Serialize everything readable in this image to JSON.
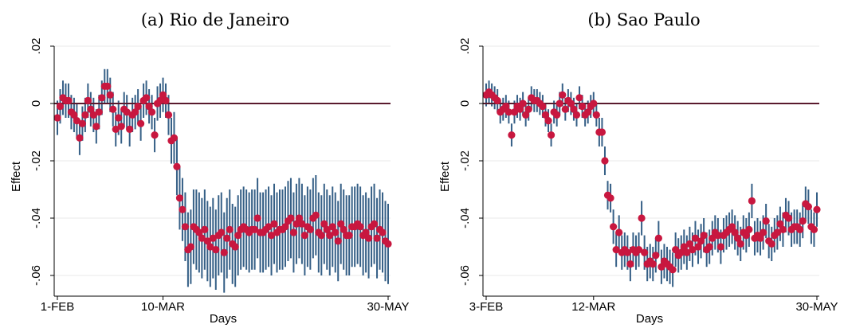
{
  "chart_data": [
    {
      "type": "scatter",
      "title": "(a)  Rio de Janeiro",
      "xlabel": "Days",
      "ylabel": "Effect",
      "x_ticks": [
        "1-FEB",
        "10-MAR",
        "30-MAY"
      ],
      "y_ticks": [
        "-.06",
        "-.04",
        "-.02",
        "0",
        ".02"
      ],
      "ylim": [
        -0.065,
        0.02
      ],
      "n_days": 120,
      "x_tick_days": [
        0,
        38,
        119
      ],
      "reference_line": 0,
      "grid": true,
      "colors": {
        "point": "#c8173f",
        "ci": "#355f86",
        "zero_line": "#5a1a2e"
      },
      "estimates": [
        -0.005,
        -0.001,
        0.002,
        0.001,
        0.001,
        -0.003,
        -0.004,
        -0.006,
        -0.012,
        -0.007,
        -0.004,
        0.001,
        -0.002,
        -0.004,
        -0.008,
        -0.003,
        0.002,
        0.006,
        0.006,
        0.003,
        -0.002,
        -0.009,
        -0.005,
        -0.008,
        -0.002,
        -0.003,
        -0.009,
        -0.004,
        -0.003,
        -0.001,
        -0.007,
        0.001,
        0.002,
        -0.001,
        -0.003,
        -0.011,
        0.0,
        0.001,
        0.003,
        0.001,
        -0.004,
        -0.013,
        -0.012,
        -0.022,
        -0.033,
        -0.037,
        -0.043,
        -0.051,
        -0.05,
        -0.043,
        -0.044,
        -0.045,
        -0.047,
        -0.044,
        -0.048,
        -0.05,
        -0.047,
        -0.051,
        -0.046,
        -0.045,
        -0.052,
        -0.047,
        -0.044,
        -0.049,
        -0.05,
        -0.046,
        -0.044,
        -0.043,
        -0.044,
        -0.045,
        -0.044,
        -0.044,
        -0.04,
        -0.045,
        -0.045,
        -0.044,
        -0.043,
        -0.046,
        -0.042,
        -0.045,
        -0.044,
        -0.044,
        -0.043,
        -0.041,
        -0.04,
        -0.045,
        -0.042,
        -0.04,
        -0.042,
        -0.046,
        -0.043,
        -0.044,
        -0.04,
        -0.039,
        -0.045,
        -0.046,
        -0.042,
        -0.044,
        -0.046,
        -0.043,
        -0.045,
        -0.048,
        -0.042,
        -0.044,
        -0.046,
        -0.046,
        -0.043,
        -0.043,
        -0.042,
        -0.043,
        -0.046,
        -0.045,
        -0.047,
        -0.043,
        -0.042,
        -0.047,
        -0.044,
        -0.045,
        -0.048,
        -0.049
      ],
      "ci_half_width": [
        0.006,
        0.006,
        0.006,
        0.006,
        0.006,
        0.006,
        0.006,
        0.006,
        0.006,
        0.006,
        0.006,
        0.006,
        0.006,
        0.006,
        0.006,
        0.006,
        0.006,
        0.006,
        0.006,
        0.006,
        0.006,
        0.006,
        0.006,
        0.006,
        0.006,
        0.006,
        0.006,
        0.006,
        0.006,
        0.006,
        0.006,
        0.006,
        0.006,
        0.006,
        0.006,
        0.006,
        0.006,
        0.006,
        0.006,
        0.006,
        0.007,
        0.008,
        0.009,
        0.01,
        0.011,
        0.011,
        0.012,
        0.013,
        0.013,
        0.013,
        0.014,
        0.014,
        0.014,
        0.014,
        0.014,
        0.014,
        0.014,
        0.014,
        0.014,
        0.014,
        0.014,
        0.014,
        0.014,
        0.014,
        0.014,
        0.014,
        0.014,
        0.014,
        0.014,
        0.014,
        0.014,
        0.014,
        0.014,
        0.014,
        0.014,
        0.014,
        0.014,
        0.014,
        0.014,
        0.014,
        0.014,
        0.014,
        0.014,
        0.014,
        0.014,
        0.014,
        0.014,
        0.014,
        0.014,
        0.014,
        0.014,
        0.014,
        0.014,
        0.014,
        0.014,
        0.014,
        0.014,
        0.014,
        0.014,
        0.014,
        0.014,
        0.014,
        0.014,
        0.014,
        0.014,
        0.014,
        0.014,
        0.014,
        0.014,
        0.014,
        0.014,
        0.014,
        0.014,
        0.014,
        0.014,
        0.014,
        0.014,
        0.014,
        0.014,
        0.014
      ]
    },
    {
      "type": "scatter",
      "title": "(b)  Sao Paulo",
      "xlabel": "Days",
      "ylabel": "Effect",
      "x_ticks": [
        "3-FEB",
        "12-MAR",
        "30-MAY"
      ],
      "y_ticks": [
        "-.06",
        "-.04",
        "-.02",
        "0",
        ".02"
      ],
      "ylim": [
        -0.065,
        0.02
      ],
      "n_days": 118,
      "x_tick_days": [
        0,
        38,
        117
      ],
      "reference_line": 0,
      "grid": true,
      "colors": {
        "point": "#c8173f",
        "ci": "#355f86",
        "zero_line": "#5a1a2e"
      },
      "estimates": [
        0.003,
        0.004,
        0.003,
        0.002,
        0.001,
        -0.003,
        -0.002,
        -0.001,
        -0.003,
        -0.011,
        -0.003,
        -0.001,
        -0.002,
        0.0,
        -0.004,
        -0.002,
        0.002,
        0.001,
        0.001,
        0.0,
        -0.001,
        -0.004,
        -0.006,
        -0.011,
        -0.003,
        -0.004,
        0.0,
        0.003,
        -0.002,
        0.001,
        0.0,
        -0.002,
        -0.004,
        0.002,
        -0.001,
        -0.004,
        -0.003,
        -0.001,
        0.0,
        -0.004,
        -0.01,
        -0.01,
        -0.02,
        -0.032,
        -0.033,
        -0.043,
        -0.051,
        -0.045,
        -0.052,
        -0.051,
        -0.052,
        -0.056,
        -0.051,
        -0.052,
        -0.051,
        -0.04,
        -0.052,
        -0.056,
        -0.055,
        -0.056,
        -0.053,
        -0.047,
        -0.057,
        -0.055,
        -0.056,
        -0.057,
        -0.058,
        -0.051,
        -0.053,
        -0.052,
        -0.05,
        -0.052,
        -0.049,
        -0.051,
        -0.047,
        -0.05,
        -0.048,
        -0.046,
        -0.051,
        -0.05,
        -0.047,
        -0.045,
        -0.046,
        -0.05,
        -0.046,
        -0.045,
        -0.044,
        -0.043,
        -0.045,
        -0.047,
        -0.049,
        -0.045,
        -0.046,
        -0.044,
        -0.034,
        -0.047,
        -0.046,
        -0.047,
        -0.045,
        -0.041,
        -0.048,
        -0.049,
        -0.046,
        -0.045,
        -0.042,
        -0.044,
        -0.039,
        -0.04,
        -0.044,
        -0.043,
        -0.043,
        -0.044,
        -0.041,
        -0.035,
        -0.036,
        -0.043,
        -0.044,
        -0.037
      ],
      "ci_half_width": [
        0.004,
        0.004,
        0.004,
        0.004,
        0.004,
        0.004,
        0.004,
        0.004,
        0.004,
        0.004,
        0.004,
        0.004,
        0.004,
        0.004,
        0.004,
        0.004,
        0.004,
        0.004,
        0.004,
        0.004,
        0.004,
        0.004,
        0.004,
        0.004,
        0.004,
        0.004,
        0.004,
        0.004,
        0.004,
        0.004,
        0.004,
        0.004,
        0.004,
        0.004,
        0.004,
        0.004,
        0.004,
        0.004,
        0.004,
        0.004,
        0.005,
        0.005,
        0.005,
        0.005,
        0.005,
        0.006,
        0.006,
        0.006,
        0.006,
        0.006,
        0.006,
        0.006,
        0.006,
        0.006,
        0.006,
        0.006,
        0.006,
        0.006,
        0.006,
        0.006,
        0.006,
        0.006,
        0.006,
        0.006,
        0.006,
        0.006,
        0.006,
        0.006,
        0.006,
        0.006,
        0.006,
        0.006,
        0.006,
        0.006,
        0.006,
        0.006,
        0.006,
        0.006,
        0.006,
        0.006,
        0.006,
        0.006,
        0.006,
        0.006,
        0.006,
        0.006,
        0.006,
        0.006,
        0.006,
        0.006,
        0.006,
        0.006,
        0.006,
        0.006,
        0.006,
        0.006,
        0.006,
        0.006,
        0.006,
        0.006,
        0.006,
        0.006,
        0.006,
        0.006,
        0.006,
        0.006,
        0.006,
        0.006,
        0.006,
        0.006,
        0.006,
        0.006,
        0.006,
        0.006,
        0.006,
        0.006,
        0.006,
        0.006
      ]
    }
  ]
}
